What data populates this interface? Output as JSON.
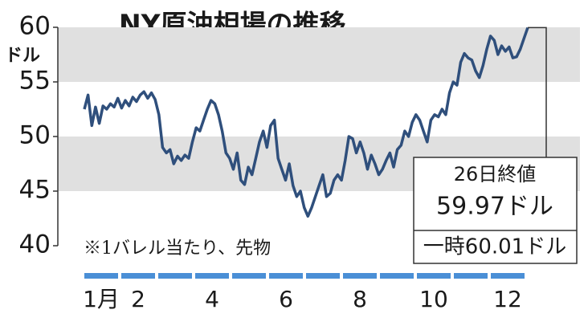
{
  "chart_data": {
    "type": "line",
    "title": "NY原油相場の推移",
    "y_unit": "ドル",
    "note": "※1バレル当たり、先物",
    "ylim": [
      40,
      60
    ],
    "yticks": [
      40,
      45,
      50,
      55,
      60
    ],
    "banded_grid": true,
    "months": [
      "1月",
      "2",
      null,
      "4",
      null,
      "6",
      null,
      "8",
      null,
      "10",
      null,
      "12"
    ],
    "month_color": "#4a8fd6",
    "series": [
      {
        "color": "#2f4f7c",
        "values": [
          52.5,
          53.8,
          51.0,
          52.7,
          51.2,
          52.8,
          52.5,
          53.0,
          52.7,
          53.5,
          52.6,
          53.3,
          52.8,
          53.6,
          53.2,
          53.8,
          54.1,
          53.5,
          54.0,
          53.4,
          52.0,
          49.0,
          48.5,
          48.8,
          47.5,
          48.2,
          47.8,
          48.3,
          48.0,
          49.5,
          50.8,
          50.5,
          51.5,
          52.5,
          53.3,
          53.0,
          52.0,
          50.5,
          48.5,
          48.0,
          47.0,
          48.5,
          46.0,
          45.6,
          47.2,
          46.5,
          48.0,
          49.5,
          50.5,
          49.0,
          51.0,
          51.5,
          48.0,
          47.0,
          46.0,
          47.5,
          45.5,
          44.5,
          45.0,
          43.5,
          42.7,
          43.5,
          44.5,
          45.5,
          46.5,
          44.5,
          44.8,
          46.0,
          46.5,
          46.0,
          47.8,
          50.0,
          49.8,
          48.5,
          49.5,
          48.5,
          47.0,
          48.3,
          47.5,
          46.5,
          47.0,
          47.8,
          48.5,
          47.2,
          48.8,
          49.2,
          50.5,
          50.0,
          51.3,
          52.0,
          51.5,
          50.5,
          49.5,
          51.5,
          52.0,
          51.8,
          52.5,
          52.0,
          54.0,
          55.0,
          54.7,
          56.8,
          57.6,
          57.2,
          57.0,
          56.0,
          55.4,
          56.5,
          58.0,
          59.2,
          58.8,
          57.5,
          58.3,
          57.8,
          58.2,
          57.2,
          57.3,
          58.0,
          59.0,
          59.97
        ]
      }
    ],
    "annotation": {
      "line1": "26日終値",
      "line2": "59.97ドル",
      "line3": "一時60.01ドル"
    }
  }
}
